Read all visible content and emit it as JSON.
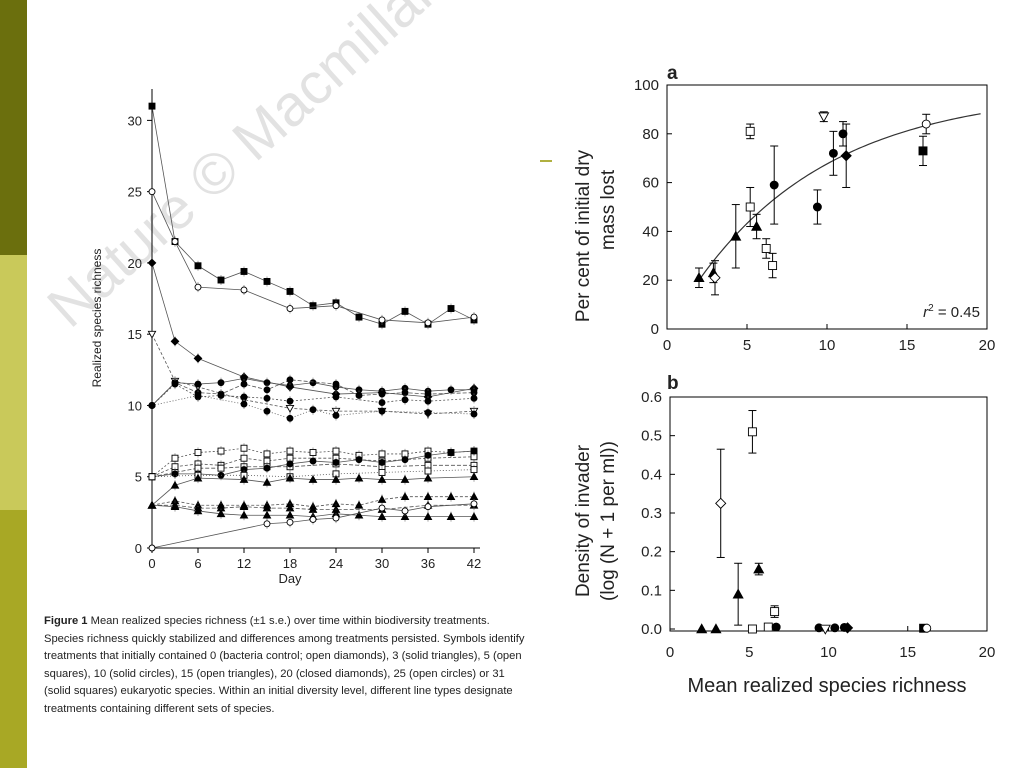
{
  "slide": {
    "strip_colors": [
      "#6b6f0d",
      "#c9c95a",
      "#a8a825"
    ],
    "dash_color": "#b0b040"
  },
  "watermark": "Nature © Macmillan",
  "caption": {
    "label": "Figure 1",
    "text": "Mean realized species richness (±1 s.e.) over time within biodiversity treatments. Species richness quickly stabilized and differences among treatments persisted. Symbols identify treatments that initially contained 0 (bacteria control; open diamonds), 3 (solid triangles), 5 (open squares), 10 (solid circles), 15 (open triangles), 20 (closed diamonds), 25 (open circles) or 31 (solid squares) eukaryotic species. Within an initial diversity level, different line types designate treatments containing different sets of species."
  },
  "chart_data": [
    {
      "type": "line",
      "xlabel": "Day",
      "ylabel": "Realized species richness",
      "xticks": [
        0,
        6,
        12,
        18,
        24,
        30,
        36,
        42
      ],
      "yticks": [
        0,
        5,
        10,
        15,
        20,
        25,
        30
      ],
      "xlim": [
        0,
        43
      ],
      "ylim": [
        0,
        32
      ],
      "x": [
        0,
        3,
        6,
        9,
        12,
        15,
        18,
        21,
        24,
        27,
        30,
        33,
        36,
        39,
        42
      ],
      "series": [
        {
          "marker": "solid-square",
          "values": [
            31,
            21.5,
            19.8,
            18.8,
            19.4,
            18.7,
            18,
            17,
            17.2,
            16.2,
            15.7,
            16.6,
            15.7,
            16.8,
            16
          ]
        },
        {
          "marker": "open-circle",
          "values": [
            25,
            21.5,
            18.3,
            null,
            18.1,
            null,
            16.8,
            null,
            17,
            null,
            16,
            null,
            15.8,
            null,
            16.2
          ]
        },
        {
          "marker": "solid-diamond",
          "values": [
            20,
            14.5,
            13.3,
            null,
            12,
            null,
            11.3,
            null,
            10.8,
            null,
            10.9,
            null,
            10.6,
            null,
            11.2
          ]
        },
        {
          "marker": "open-triangle",
          "values": [
            15,
            11.7,
            11.3,
            null,
            10.4,
            null,
            9.8,
            null,
            9.6,
            null,
            9.6,
            null,
            9.4,
            null,
            9.6
          ]
        },
        {
          "marker": "solid-circle",
          "values": [
            10,
            11.6,
            11.5,
            11.6,
            11.9,
            11.6,
            11.4,
            11.6,
            11.3,
            11.1,
            11,
            11.2,
            11,
            11.1,
            11.1
          ]
        },
        {
          "marker": "solid-circle",
          "values": [
            10,
            11.6,
            10.9,
            10.8,
            11.5,
            11.1,
            11.8,
            null,
            11.5,
            10.7,
            10.8,
            10.9,
            10.8,
            null,
            10.9
          ]
        },
        {
          "marker": "solid-circle",
          "values": [
            10,
            11.5,
            10.6,
            10.7,
            10.6,
            10.5,
            10.3,
            null,
            10.6,
            null,
            10.2,
            10.4,
            10.3,
            null,
            10.5
          ]
        },
        {
          "marker": "solid-circle",
          "values": [
            10,
            null,
            10.7,
            null,
            10.1,
            9.6,
            9.1,
            9.7,
            9.3,
            null,
            9.6,
            null,
            9.5,
            null,
            9.4
          ]
        },
        {
          "marker": "open-square",
          "values": [
            5,
            6.3,
            6.7,
            6.8,
            7,
            6.6,
            6.8,
            6.7,
            6.8,
            6.5,
            6.6,
            6.6,
            6.8,
            6.7,
            6.8
          ]
        },
        {
          "marker": "open-square",
          "values": [
            5,
            5.7,
            5.9,
            5.8,
            6.3,
            6.1,
            6.3,
            null,
            6.3,
            null,
            6.1,
            null,
            6.3,
            null,
            6.4
          ]
        },
        {
          "marker": "open-square",
          "values": [
            5,
            5.3,
            5.6,
            5.6,
            5.7,
            5.7,
            5.7,
            null,
            5.9,
            null,
            5.7,
            null,
            5.8,
            null,
            5.8
          ]
        },
        {
          "marker": "solid-circle",
          "values": [
            5,
            5.2,
            5.2,
            5.1,
            5.5,
            5.6,
            5.9,
            6.1,
            6,
            6.2,
            6,
            6.2,
            6.5,
            6.7,
            6.8
          ]
        },
        {
          "marker": "open-square",
          "values": [
            5,
            null,
            5.1,
            null,
            5.1,
            null,
            5,
            null,
            5.2,
            null,
            5.3,
            null,
            5.4,
            null,
            5.5
          ]
        },
        {
          "marker": "solid-triangle",
          "values": [
            3,
            4.4,
            4.9,
            null,
            4.8,
            4.6,
            4.9,
            4.8,
            4.8,
            4.9,
            4.8,
            4.8,
            4.9,
            null,
            5
          ]
        },
        {
          "marker": "solid-triangle",
          "values": [
            3,
            3.3,
            3,
            3,
            3,
            3,
            3.1,
            2.9,
            3.1,
            3,
            3.4,
            3.6,
            3.6,
            3.6,
            3.6
          ]
        },
        {
          "marker": "solid-triangle",
          "values": [
            3,
            3,
            2.8,
            2.8,
            2.9,
            2.8,
            2.8,
            2.7,
            2.7,
            null,
            2.7,
            null,
            3,
            null,
            3
          ]
        },
        {
          "marker": "solid-triangle",
          "values": [
            3,
            2.9,
            2.6,
            2.4,
            2.3,
            2.3,
            2.3,
            2.2,
            2.4,
            2.3,
            2.2,
            2.2,
            2.2,
            2.2,
            2.2
          ]
        },
        {
          "marker": "open-circle",
          "values": [
            0,
            null,
            null,
            null,
            null,
            1.7,
            1.8,
            2,
            2.1,
            null,
            2.8,
            2.6,
            2.9,
            null,
            3.1
          ]
        }
      ]
    },
    {
      "type": "scatter",
      "panel": "a",
      "xlabel": "",
      "ylabel": "Per cent of initial dry mass lost",
      "ylabel_lines": [
        "Per cent of initial dry",
        "mass lost"
      ],
      "xticks": [
        0,
        5,
        10,
        15,
        20
      ],
      "yticks": [
        0,
        20,
        40,
        60,
        80,
        100
      ],
      "xlim": [
        0,
        20
      ],
      "ylim": [
        0,
        100
      ],
      "annotation": {
        "prefix": "r",
        "sup": "2",
        "suffix": " = 0.45"
      },
      "fit_curve": "saturating",
      "points": [
        {
          "x": 2.0,
          "y": 21,
          "err": 4,
          "marker": "solid-triangle"
        },
        {
          "x": 2.9,
          "y": 23,
          "err": 4,
          "marker": "solid-triangle"
        },
        {
          "x": 3.0,
          "y": 21,
          "err": 7,
          "marker": "open-diamond"
        },
        {
          "x": 4.3,
          "y": 38,
          "err": 13,
          "marker": "solid-triangle"
        },
        {
          "x": 5.2,
          "y": 81,
          "err": 3,
          "marker": "open-square"
        },
        {
          "x": 5.2,
          "y": 50,
          "err": 8,
          "marker": "open-square"
        },
        {
          "x": 5.6,
          "y": 42,
          "err": 5,
          "marker": "solid-triangle"
        },
        {
          "x": 6.2,
          "y": 33,
          "err": 4,
          "marker": "open-square"
        },
        {
          "x": 6.6,
          "y": 26,
          "err": 5,
          "marker": "open-square"
        },
        {
          "x": 6.7,
          "y": 59,
          "err": 16,
          "marker": "solid-circle"
        },
        {
          "x": 9.4,
          "y": 50,
          "err": 7,
          "marker": "solid-circle"
        },
        {
          "x": 9.8,
          "y": 87,
          "err": 2,
          "marker": "open-triangle"
        },
        {
          "x": 10.4,
          "y": 72,
          "err": 9,
          "marker": "solid-circle"
        },
        {
          "x": 11.0,
          "y": 80,
          "err": 5,
          "marker": "solid-circle"
        },
        {
          "x": 11.2,
          "y": 71,
          "err": 13,
          "marker": "solid-diamond"
        },
        {
          "x": 16.0,
          "y": 73,
          "err": 6,
          "marker": "solid-square"
        },
        {
          "x": 16.2,
          "y": 84,
          "err": 4,
          "marker": "open-circle"
        }
      ]
    },
    {
      "type": "scatter",
      "panel": "b",
      "xlabel": "Mean realized species richness",
      "ylabel": "Density of invader (log (N + 1 per ml))",
      "ylabel_lines": [
        "Density of invader",
        "(log (N + 1 per ml))"
      ],
      "xticks": [
        0,
        5,
        10,
        15,
        20
      ],
      "yticks": [
        "0.0",
        "0.1",
        "0.2",
        "0.3",
        "0.4",
        "0.5",
        "0.6"
      ],
      "xlim": [
        0,
        20
      ],
      "ylim": [
        0,
        0.6
      ],
      "points": [
        {
          "x": 2.0,
          "y": 0.0,
          "err": 0,
          "marker": "solid-triangle"
        },
        {
          "x": 2.9,
          "y": 0.0,
          "err": 0,
          "marker": "solid-triangle"
        },
        {
          "x": 3.2,
          "y": 0.325,
          "err": 0.14,
          "marker": "open-diamond"
        },
        {
          "x": 4.3,
          "y": 0.09,
          "err": 0.08,
          "marker": "solid-triangle"
        },
        {
          "x": 5.2,
          "y": 0.51,
          "err": 0.055,
          "marker": "open-square"
        },
        {
          "x": 5.2,
          "y": 0.0,
          "err": 0,
          "marker": "open-square"
        },
        {
          "x": 5.6,
          "y": 0.155,
          "err": 0.015,
          "marker": "solid-triangle"
        },
        {
          "x": 6.2,
          "y": 0.005,
          "err": 0,
          "marker": "open-square"
        },
        {
          "x": 6.6,
          "y": 0.045,
          "err": 0.015,
          "marker": "open-square"
        },
        {
          "x": 6.7,
          "y": 0.005,
          "err": 0,
          "marker": "solid-circle"
        },
        {
          "x": 9.4,
          "y": 0.003,
          "err": 0,
          "marker": "solid-circle"
        },
        {
          "x": 9.8,
          "y": 0.0,
          "err": 0,
          "marker": "open-triangle"
        },
        {
          "x": 10.4,
          "y": 0.003,
          "err": 0,
          "marker": "solid-circle"
        },
        {
          "x": 11.0,
          "y": 0.004,
          "err": 0,
          "marker": "solid-circle"
        },
        {
          "x": 11.2,
          "y": 0.003,
          "err": 0,
          "marker": "solid-diamond"
        },
        {
          "x": 16.0,
          "y": 0.002,
          "err": 0,
          "marker": "solid-square"
        },
        {
          "x": 16.2,
          "y": 0.002,
          "err": 0,
          "marker": "open-circle"
        }
      ]
    }
  ]
}
